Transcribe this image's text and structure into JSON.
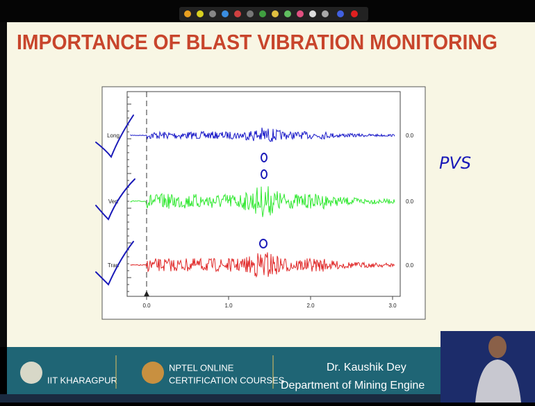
{
  "title": "IMPORTANCE OF BLAST VIBRATION MONITORING",
  "figure": {
    "channels": [
      {
        "label": "Long",
        "right_label": "0.0"
      },
      {
        "label": "Vert",
        "right_label": "0.0"
      },
      {
        "label": "Tran",
        "right_label": "0.0"
      }
    ],
    "x_tick_labels": [
      "0.0",
      "1.0",
      "2.0",
      "3.0"
    ]
  },
  "annotation": "PVS",
  "footer": {
    "institute": "IIT KHARAGPUR",
    "nptel_line1": "NPTEL ONLINE",
    "nptel_line2": "CERTIFICATION COURSES",
    "presenter": "Dr. Kaushik Dey",
    "department": "Department of Mining Engine"
  }
}
